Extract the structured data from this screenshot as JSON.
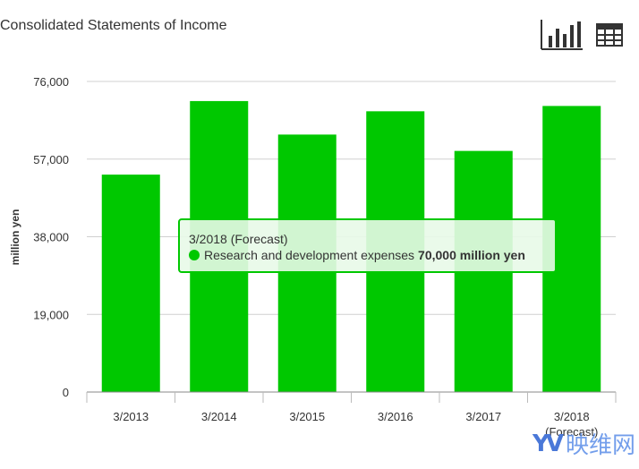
{
  "header": {
    "title": "Consolidated Statements of Income",
    "chart_view_icon": "bar-chart-icon",
    "table_view_icon": "table-grid-icon"
  },
  "chart_data": {
    "type": "bar",
    "title": "Consolidated Statements of Income",
    "xlabel": "",
    "ylabel": "million yen",
    "categories": [
      "3/2013",
      "3/2014",
      "3/2015",
      "3/2016",
      "3/2017",
      "3/2018 (Forecast)"
    ],
    "series": [
      {
        "name": "Research and development expenses",
        "values": [
          53200,
          71200,
          63000,
          68700,
          59000,
          70000
        ],
        "color": "#00c800"
      }
    ],
    "ylim": [
      0,
      76000
    ],
    "yticks": [
      "0",
      "19,000",
      "38,000",
      "57,000",
      "76,000"
    ],
    "grid": true
  },
  "tooltip": {
    "header": "3/2018 (Forecast)",
    "series_label": "Research and development expenses",
    "value": "70,000 million yen"
  },
  "watermark": {
    "logo": "YV",
    "text": "映维网"
  }
}
